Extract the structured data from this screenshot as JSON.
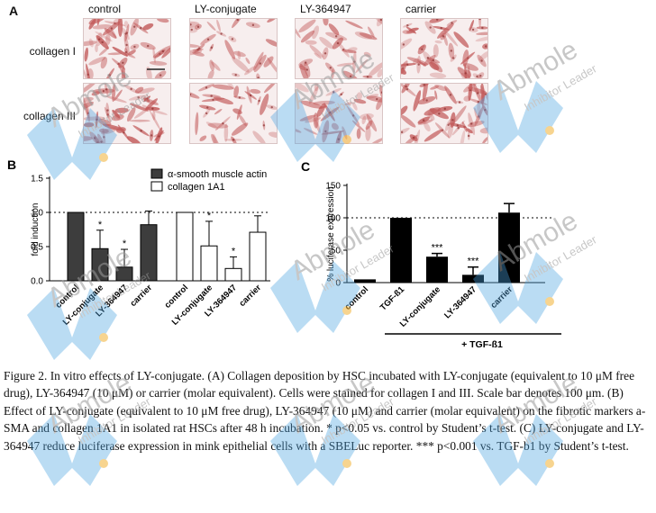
{
  "panel_a": {
    "letter": "A",
    "columns": [
      "control",
      "LY-conjugate",
      "LY-364947",
      "carrier"
    ],
    "rows": [
      "collagen I",
      "collagen III"
    ]
  },
  "chart_data": [
    {
      "panel": "B",
      "type": "bar",
      "ylabel": "fold induction",
      "ylim": [
        0.0,
        1.5
      ],
      "yticks": [
        "0.0",
        "0.5",
        "1.0",
        "1.5"
      ],
      "reference_line": 1.0,
      "categories": [
        "control",
        "LY-conjugate",
        "LY-364947",
        "carrier"
      ],
      "series": [
        {
          "name": "α-smooth muscle actin",
          "fill": "#3d3d3d",
          "values": [
            1.0,
            0.47,
            0.2,
            0.82
          ],
          "errors": [
            0.0,
            0.27,
            0.26,
            0.2
          ],
          "annotations": [
            "",
            "*",
            "*",
            ""
          ]
        },
        {
          "name": "collagen 1A1",
          "fill": "#ffffff",
          "values": [
            1.0,
            0.51,
            0.18,
            0.71
          ],
          "errors": [
            0.0,
            0.36,
            0.17,
            0.24
          ],
          "annotations": [
            "",
            "*",
            "*",
            ""
          ]
        }
      ]
    },
    {
      "panel": "C",
      "type": "bar",
      "ylabel": "% luciferase expression",
      "ylim": [
        0,
        150
      ],
      "yticks": [
        "0",
        "50",
        "100",
        "150"
      ],
      "reference_line": 100,
      "categories": [
        "control",
        "TGF-ß1",
        "LY-conjugate",
        "LY-364947",
        "carrier"
      ],
      "series": [
        {
          "name": "",
          "fill": "#000000",
          "values": [
            5,
            100,
            40,
            12,
            108
          ],
          "errors": [
            0,
            0,
            5,
            12,
            14
          ],
          "annotations": [
            "",
            "",
            "***",
            "***",
            ""
          ]
        }
      ],
      "group_label": "+ TGF-ß1"
    }
  ],
  "caption": "Figure 2. In vitro effects of LY-conjugate. (A) Collagen deposition by HSC incubated with LY-conjugate (equivalent to 10 μM free drug), LY-364947 (10 μM) or carrier (molar equivalent). Cells were stained for collagen I and III. Scale bar denotes 100 μm. (B) Effect of LY-conjugate (equivalent to 10 μM free drug), LY-364947 (10 μM) and carrier (molar equivalent) on the fibrotic markers a-SMA and collagen 1A1 in isolated rat HSCs after 48 h incubation. * p<0.05 vs. control by Student’s t-test. (C) LY-conjugate and LY-364947 reduce luciferase expression in mink epithelial cells with a SBELuc reporter. *** p<0.001 vs. TGF-b1 by Student’s t-test.",
  "watermark": {
    "brand": "Abmole",
    "tagline": "Inhibitor Leader",
    "color": "#4aa3df",
    "dot_color": "#f2b134"
  },
  "colors": {
    "stain": "#c25a5a",
    "bar_dark": "#3d3d3d"
  }
}
